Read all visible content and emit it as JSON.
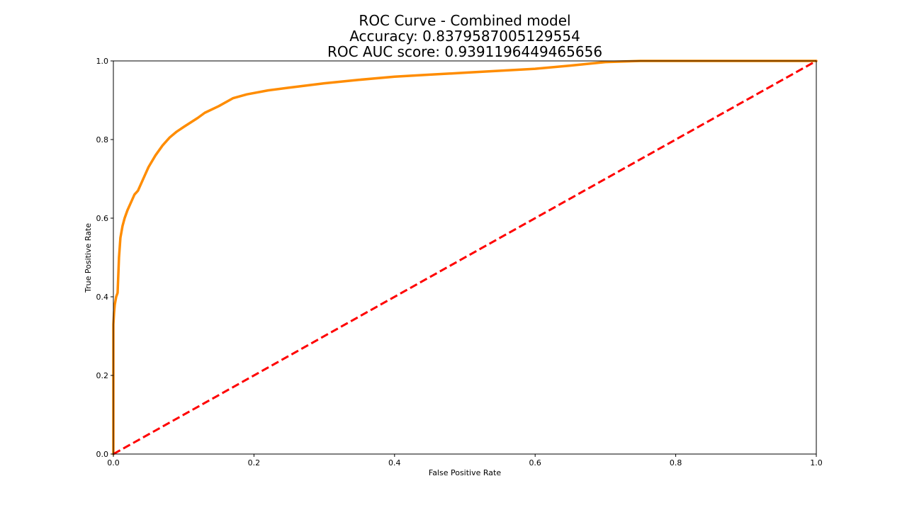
{
  "chart_data": {
    "type": "line",
    "title_lines": [
      "ROC Curve - Combined model",
      "Accuracy: 0.8379587005129554",
      "ROC AUC score: 0.9391196449465656"
    ],
    "xlabel": "False Positive Rate",
    "ylabel": "True Positive Rate",
    "xlim": [
      0.0,
      1.0
    ],
    "ylim": [
      0.0,
      1.0
    ],
    "xticks": [
      "0.0",
      "0.2",
      "0.4",
      "0.6",
      "0.8",
      "1.0"
    ],
    "yticks": [
      "0.0",
      "0.2",
      "0.4",
      "0.6",
      "0.8",
      "1.0"
    ],
    "grid": false,
    "series": [
      {
        "color": "#ff8c00",
        "style": "solid",
        "x": [
          0.0,
          0.0,
          0.001,
          0.002,
          0.004,
          0.006,
          0.008,
          0.01,
          0.013,
          0.016,
          0.02,
          0.025,
          0.03,
          0.035,
          0.04,
          0.045,
          0.05,
          0.06,
          0.07,
          0.08,
          0.09,
          0.1,
          0.12,
          0.13,
          0.15,
          0.17,
          0.19,
          0.22,
          0.25,
          0.3,
          0.35,
          0.4,
          0.45,
          0.5,
          0.55,
          0.6,
          0.65,
          0.7,
          0.75,
          0.8,
          0.9,
          1.0
        ],
        "y": [
          0.0,
          0.33,
          0.36,
          0.38,
          0.4,
          0.41,
          0.5,
          0.55,
          0.58,
          0.6,
          0.62,
          0.64,
          0.66,
          0.67,
          0.69,
          0.71,
          0.73,
          0.76,
          0.785,
          0.805,
          0.82,
          0.832,
          0.855,
          0.868,
          0.885,
          0.905,
          0.915,
          0.925,
          0.932,
          0.943,
          0.952,
          0.96,
          0.965,
          0.97,
          0.975,
          0.98,
          0.988,
          0.997,
          1.0,
          1.0,
          1.0,
          1.0
        ]
      },
      {
        "color": "#ff0000",
        "style": "dashed",
        "x": [
          0.0,
          1.0
        ],
        "y": [
          0.0,
          1.0
        ]
      }
    ]
  }
}
